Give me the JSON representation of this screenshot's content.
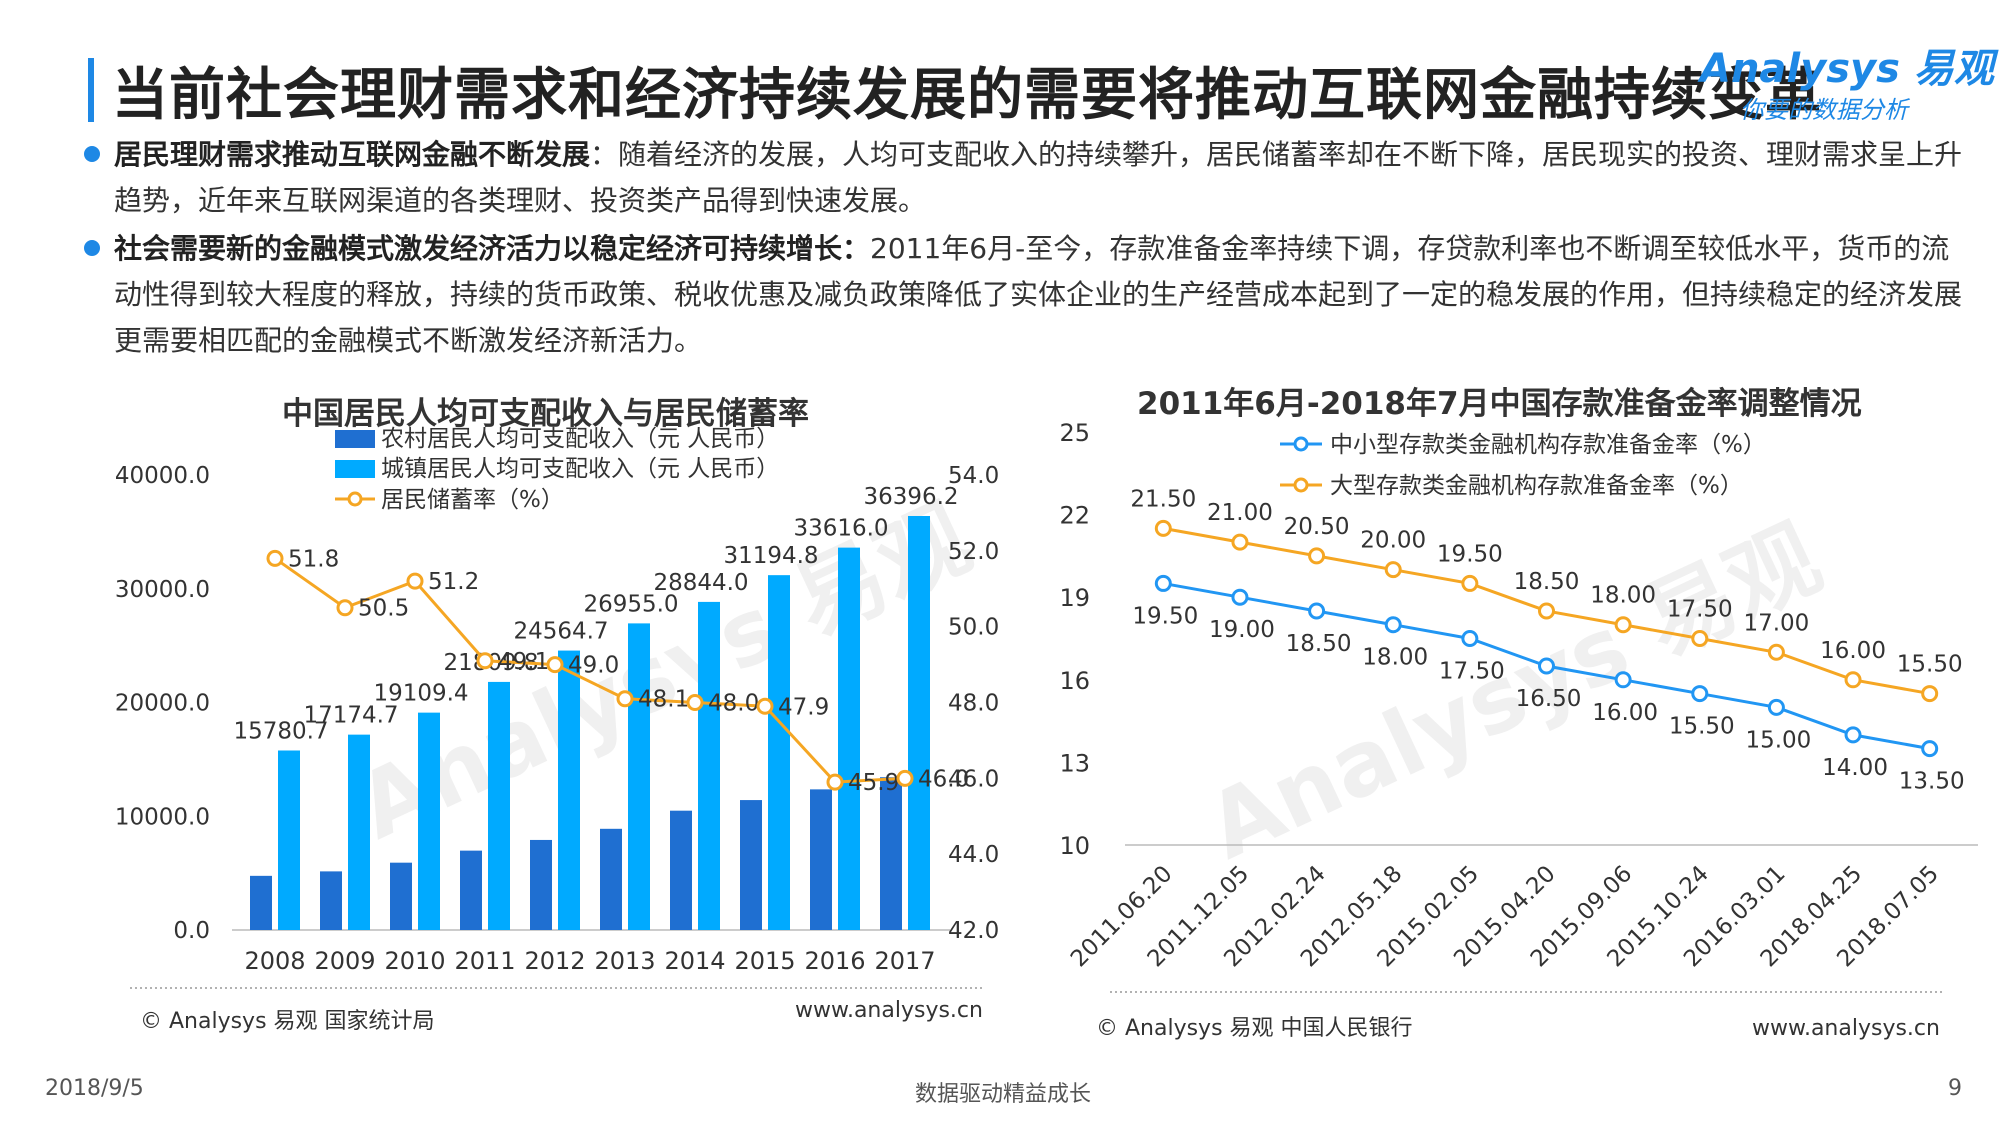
{
  "title": "当前社会理财需求和经济持续发展的需要将推动互联网金融持续变革",
  "logo": {
    "brand": "Analysys 易观",
    "slogan": "你要的数据分析"
  },
  "bullets": [
    {
      "bold": "居民理财需求推动互联网金融不断发展",
      "text": "：随着经济的发展，人均可支配收入的持续攀升，居民储蓄率却在不断下降，居民现实的投资、理财需求呈上升趋势，近年来互联网渠道的各类理财、投资类产品得到快速发展。"
    },
    {
      "bold": "社会需要新的金融模式激发经济活力以稳定经济可持续增长：",
      "text": "2011年6月-至今，存款准备金率持续下调，存贷款利率也不断调至较低水平，货币的流动性得到较大程度的释放，持续的货币政策、税收优惠及减负政策降低了实体企业的生产经营成本起到了一定的稳发展的作用，但持续稳定的经济发展更需要相匹配的金融模式不断激发经济新活力。"
    }
  ],
  "colors": {
    "rural": "#1f6fd1",
    "urban": "#00aaff",
    "saving": "#f5a623",
    "small": "#2196f3",
    "large": "#f5a623"
  },
  "chart_data": [
    {
      "type": "bar",
      "title": "中国居民人均可支配收入与居民储蓄率",
      "categories": [
        "2008",
        "2009",
        "2010",
        "2011",
        "2012",
        "2013",
        "2014",
        "2015",
        "2016",
        "2017"
      ],
      "series": [
        {
          "name": "农村居民人均可支配收入（元 人民币）",
          "type": "bar",
          "values": [
            4761,
            5153,
            5919,
            6977,
            7917,
            8896,
            10489,
            11422,
            12363,
            13432
          ]
        },
        {
          "name": "城镇居民人均可支配收入（元 人民币）",
          "type": "bar",
          "values": [
            15780.7,
            17174.7,
            19109.4,
            21809.8,
            24564.7,
            26955.0,
            28844.0,
            31194.8,
            33616.0,
            36396.2
          ]
        },
        {
          "name": "居民储蓄率（%）",
          "type": "line",
          "axis": "right",
          "values": [
            51.8,
            50.5,
            51.2,
            49.1,
            49.0,
            48.1,
            48.0,
            47.9,
            45.9,
            46.0
          ]
        }
      ],
      "bar_labels": [
        "15780.7",
        "17174.7",
        "19109.4",
        "21809.8",
        "24564.7",
        "26955.0",
        "28844.0",
        "31194.8",
        "33616.0",
        "36396.2"
      ],
      "line_labels": [
        "51.8",
        "50.5",
        "51.2",
        "49.1",
        "49.0",
        "48.1",
        "48.0",
        "47.9",
        "45.9",
        "46.0"
      ],
      "ylim": [
        0,
        40000
      ],
      "yticks": [
        "0.0",
        "10000.0",
        "20000.0",
        "30000.0",
        "40000.0"
      ],
      "y2lim": [
        42,
        54
      ],
      "y2ticks": [
        "42.0",
        "44.0",
        "46.0",
        "48.0",
        "50.0",
        "52.0",
        "54.0"
      ],
      "legend": "top-left",
      "source": "© Analysys 易观 国家统计局",
      "url": "www.analysys.cn"
    },
    {
      "type": "line",
      "title": "2011年6月-2018年7月中国存款准备金率调整情况",
      "categories": [
        "2011.06.20",
        "2011.12.05",
        "2012.02.24",
        "2012.05.18",
        "2015.02.05",
        "2015.04.20",
        "2015.09.06",
        "2015.10.24",
        "2016.03.01",
        "2018.04.25",
        "2018.07.05"
      ],
      "series": [
        {
          "name": "中小型存款类金融机构存款准备金率（%）",
          "values": [
            19.5,
            19.0,
            18.5,
            18.0,
            17.5,
            16.5,
            16.0,
            15.5,
            15.0,
            14.0,
            13.5
          ]
        },
        {
          "name": "大型存款类金融机构存款准备金率（%）",
          "values": [
            21.5,
            21.0,
            20.5,
            20.0,
            19.5,
            18.5,
            18.0,
            17.5,
            17.0,
            16.0,
            15.5
          ]
        }
      ],
      "small_labels": [
        "19.50",
        "19.00",
        "18.50",
        "18.00",
        "17.50",
        "16.50",
        "16.00",
        "15.50",
        "15.00",
        "14.00",
        "13.50"
      ],
      "large_labels": [
        "21.50",
        "21.00",
        "20.50",
        "20.00",
        "19.50",
        "18.50",
        "18.00",
        "17.50",
        "17.00",
        "16.00",
        "15.50"
      ],
      "ylim": [
        10,
        25
      ],
      "yticks": [
        "10",
        "13",
        "16",
        "19",
        "22",
        "25"
      ],
      "legend": "top",
      "source": "© Analysys 易观 中国人民银行",
      "url": "www.analysys.cn"
    }
  ],
  "footer": {
    "date": "2018/9/5",
    "center": "数据驱动精益成长",
    "page": "9"
  }
}
